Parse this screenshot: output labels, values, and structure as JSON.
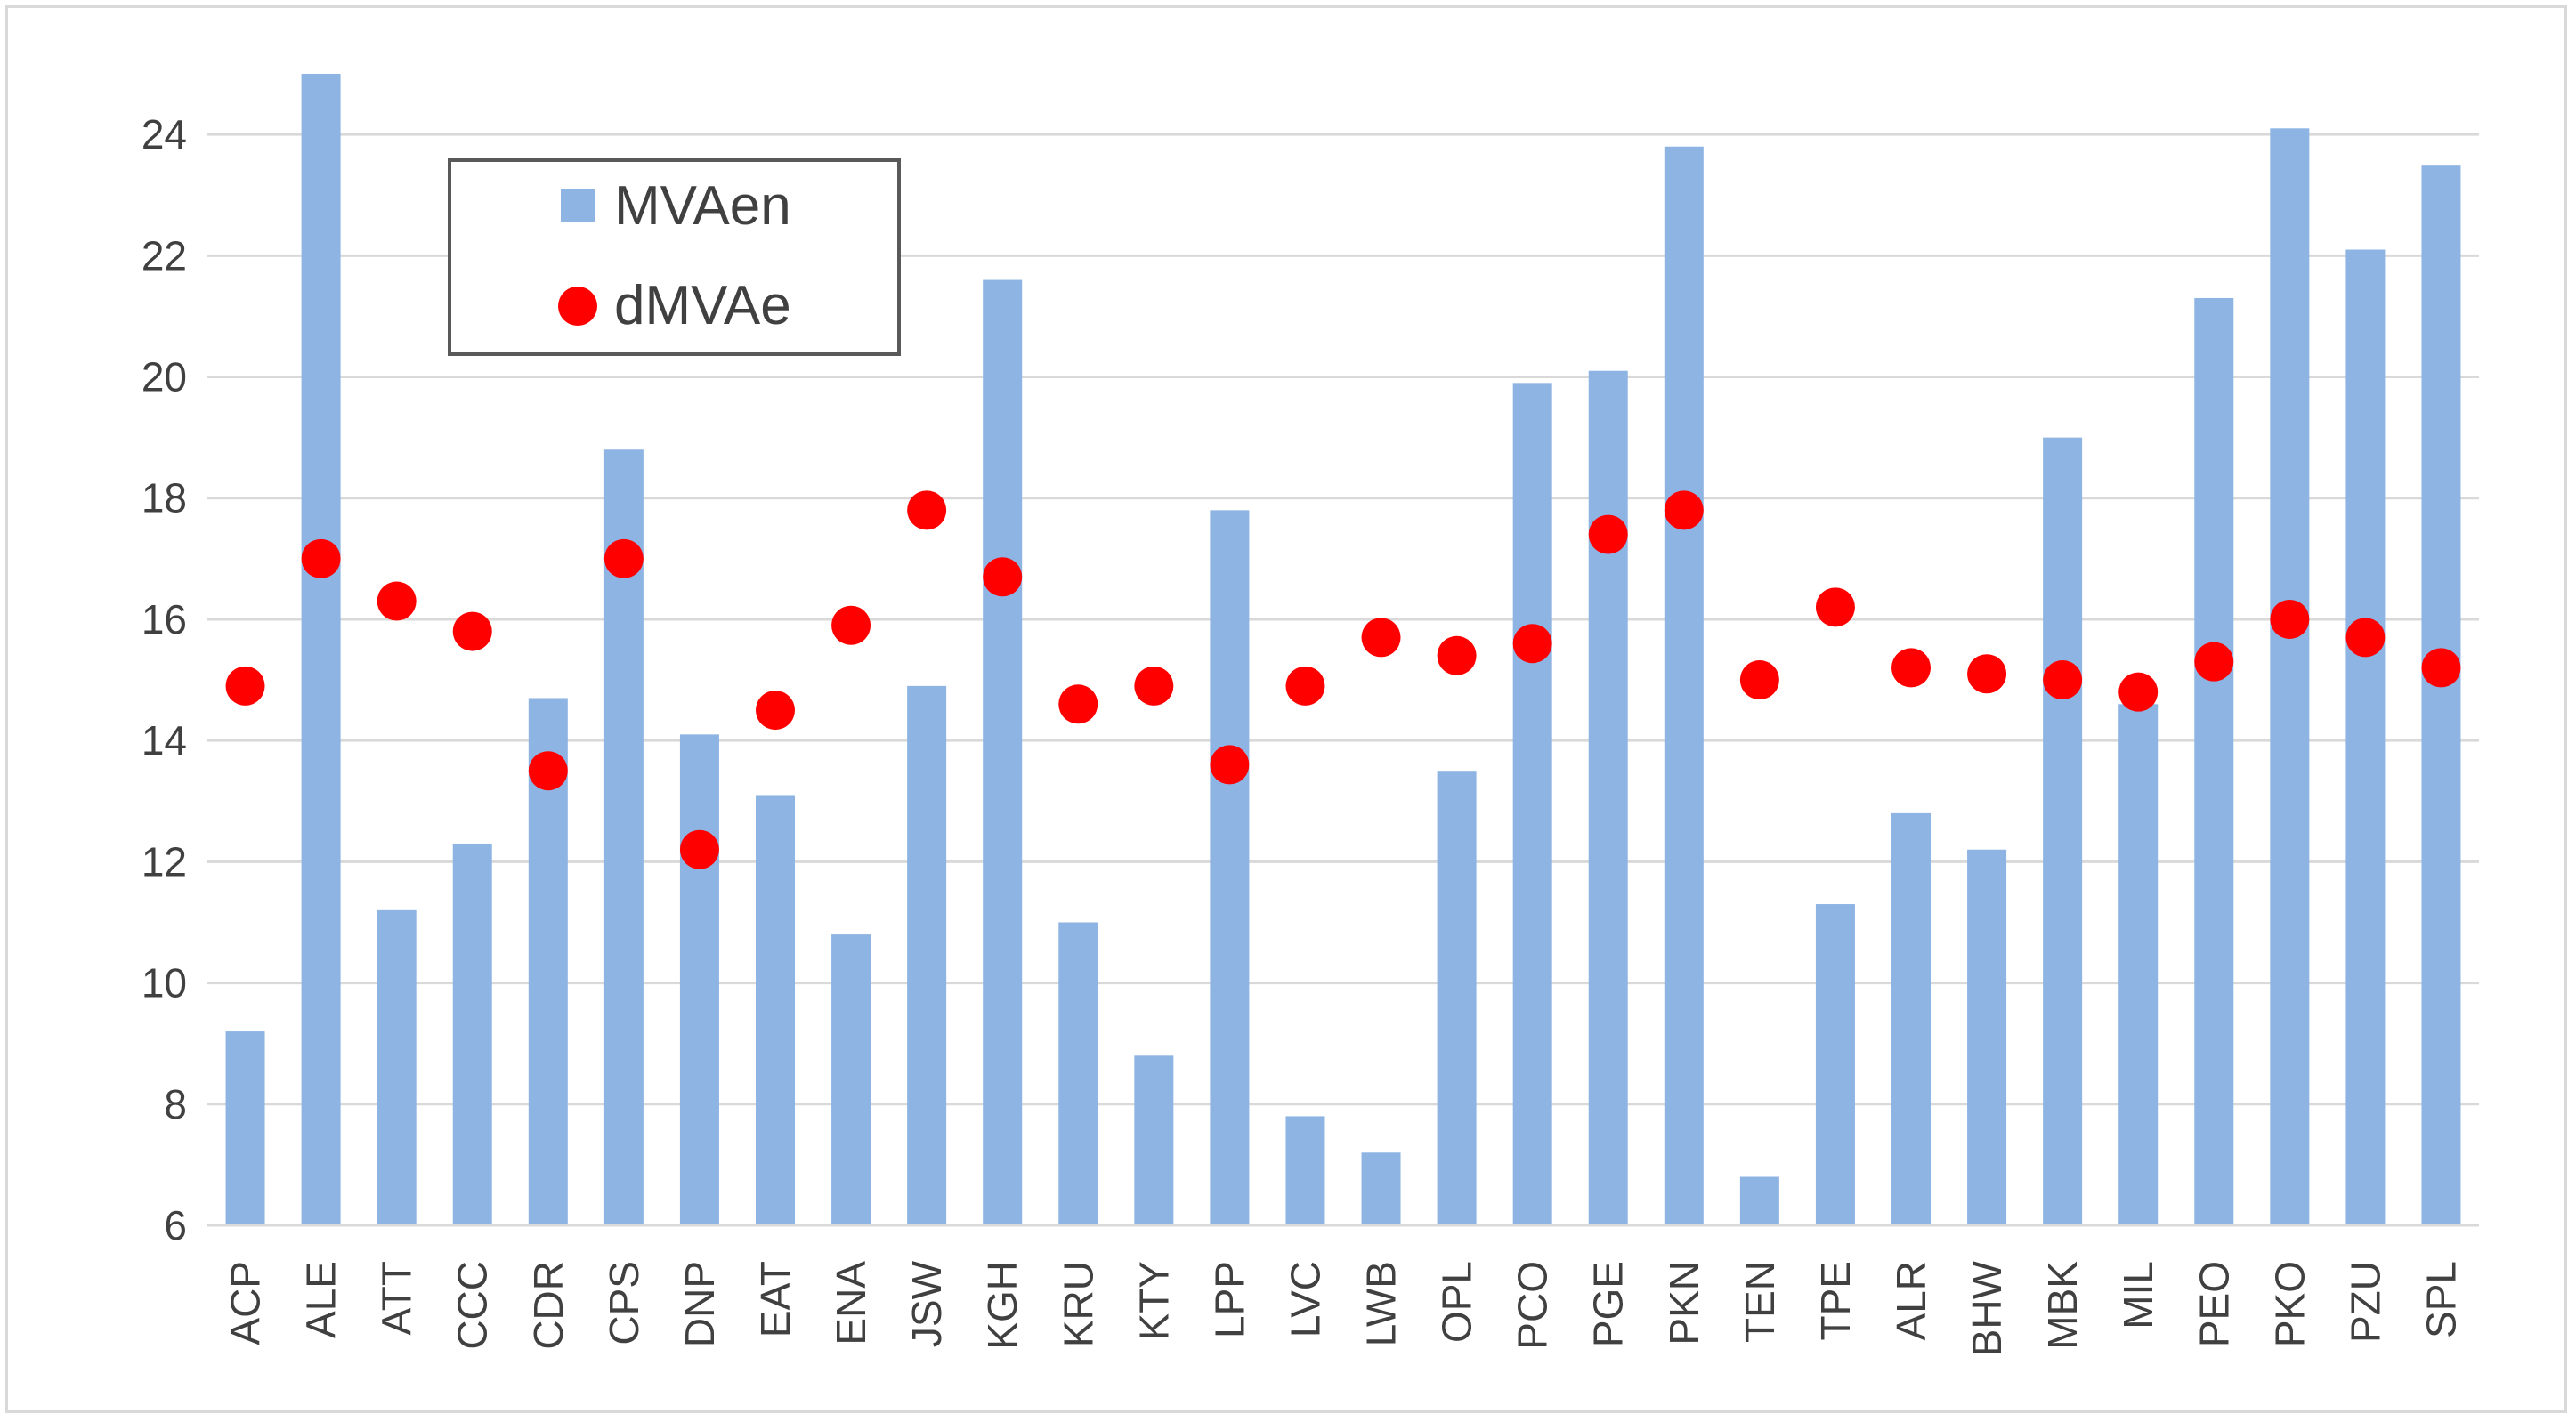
{
  "chart_data": {
    "type": "bar",
    "title": "",
    "xlabel": "",
    "ylabel": "",
    "ylim": [
      6,
      25
    ],
    "yticks": [
      6,
      8,
      10,
      12,
      14,
      16,
      18,
      20,
      22,
      24
    ],
    "grid": true,
    "legend_position": "top-left",
    "categories": [
      "ACP",
      "ALE",
      "ATT",
      "CCC",
      "CDR",
      "CPS",
      "DNP",
      "EAT",
      "ENA",
      "JSW",
      "KGH",
      "KRU",
      "KTY",
      "LPP",
      "LVC",
      "LWB",
      "OPL",
      "PCO",
      "PGE",
      "PKN",
      "TEN",
      "TPE",
      "ALR",
      "BHW",
      "MBK",
      "MIL",
      "PEO",
      "PKO",
      "PZU",
      "SPL"
    ],
    "series": [
      {
        "name": "MVAen",
        "kind": "bar",
        "color": "#8eb4e3",
        "values": [
          9.2,
          25.0,
          11.2,
          12.3,
          14.7,
          18.8,
          14.1,
          13.1,
          10.8,
          14.9,
          21.6,
          11.0,
          8.8,
          17.8,
          7.8,
          7.2,
          13.5,
          19.9,
          20.1,
          23.8,
          6.8,
          11.3,
          12.8,
          12.2,
          19.0,
          14.6,
          21.3,
          24.1,
          22.1,
          23.5
        ]
      },
      {
        "name": "dMVAe",
        "kind": "marker",
        "color": "#ff0000",
        "values": [
          14.9,
          17.0,
          16.3,
          15.8,
          13.5,
          17.0,
          12.2,
          14.5,
          15.9,
          17.8,
          16.7,
          14.6,
          14.9,
          13.6,
          14.9,
          15.7,
          15.4,
          15.6,
          17.4,
          17.8,
          15.0,
          16.2,
          15.2,
          15.1,
          15.0,
          14.8,
          15.3,
          16.0,
          15.7,
          15.2
        ]
      }
    ]
  }
}
